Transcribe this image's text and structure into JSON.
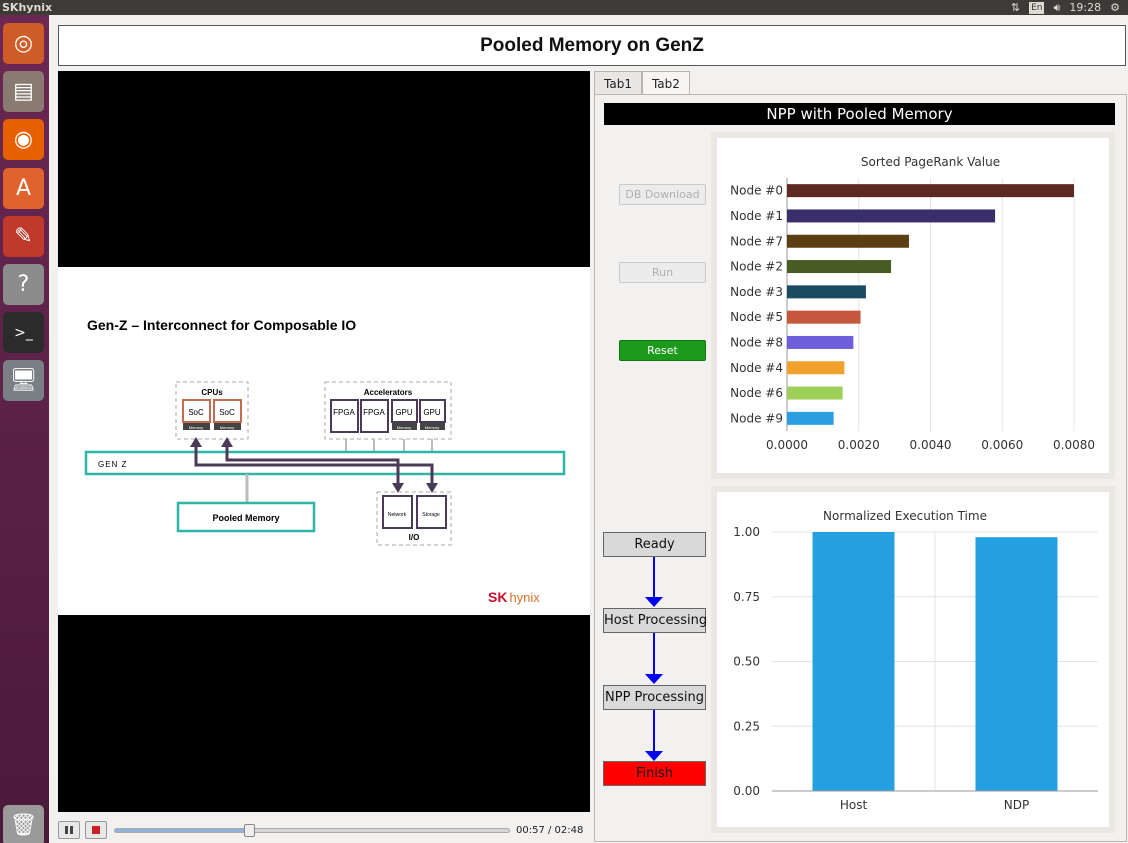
{
  "topbar": {
    "title": "SKhynix",
    "keyboard": "En",
    "time": "19:28",
    "network_icon": "network-arrows-icon",
    "sound_icon": "speaker-icon",
    "power_icon": "power-gear-icon"
  },
  "launcher": {
    "items": [
      {
        "name": "ubuntu-dash-icon",
        "color": "#cf5b27"
      },
      {
        "name": "files-icon",
        "color": "#8a7b72"
      },
      {
        "name": "firefox-icon",
        "color": "#e66000"
      },
      {
        "name": "software-center-icon",
        "color": "#e0622d"
      },
      {
        "name": "system-settings-icon",
        "color": "#c0392b"
      },
      {
        "name": "help-icon",
        "color": "#8c8c8c"
      },
      {
        "name": "terminal-icon",
        "color": "#2b2b2b"
      },
      {
        "name": "remote-desktop-icon",
        "color": "#7a7f86"
      },
      {
        "name": "trash-icon",
        "color": "#9a9a9a"
      }
    ]
  },
  "app": {
    "title": "Pooled Memory on GenZ"
  },
  "video": {
    "slide_title": "Gen-Z – Interconnect for Composable IO",
    "logo_main": "SK",
    "logo_sub": "hynix",
    "diagram": {
      "cpus_label": "CPUs",
      "accelerators_label": "Accelerators",
      "soc": "SoC",
      "memory": "Memory",
      "fpga": "FPGA",
      "gpu": "GPU",
      "genz": "GEN Z",
      "pooled_memory": "Pooled Memory",
      "network": "Network",
      "storage": "Storage",
      "io": "I/O"
    },
    "time": "00:57 / 02:48",
    "progress": 0.339
  },
  "tabs": [
    {
      "label": "Tab1"
    },
    {
      "label": "Tab2"
    }
  ],
  "panel": {
    "title": "NPP with Pooled Memory",
    "buttons": {
      "download": "DB Download",
      "run": "Run",
      "reset": "Reset"
    },
    "flow": {
      "ready": "Ready",
      "host": "Host Processing",
      "npp": "NPP Processing",
      "finish": "Finish"
    }
  },
  "chart_data": [
    {
      "type": "bar",
      "orientation": "horizontal",
      "title": "Sorted PageRank Value",
      "categories": [
        "Node #0",
        "Node #1",
        "Node #7",
        "Node #2",
        "Node #3",
        "Node #5",
        "Node #8",
        "Node #4",
        "Node #6",
        "Node #9"
      ],
      "values": [
        0.008,
        0.0058,
        0.0034,
        0.0029,
        0.0022,
        0.00205,
        0.00185,
        0.0016,
        0.00155,
        0.0013
      ],
      "colors": [
        "#5c2a22",
        "#3a2e6b",
        "#5c3e12",
        "#475c23",
        "#1b4a63",
        "#c4573c",
        "#6f5fdc",
        "#f2a22c",
        "#9ecf58",
        "#2b9ee0"
      ],
      "xlim": [
        0,
        0.008
      ],
      "xticks": [
        "0.0000",
        "0.0020",
        "0.0040",
        "0.0060",
        "0.0080"
      ],
      "grid": true
    },
    {
      "type": "bar",
      "title": "Normalized Execution Time",
      "categories": [
        "Host",
        "NDP"
      ],
      "values": [
        1.0,
        0.98
      ],
      "color": "#24a0e0",
      "ylim": [
        0,
        1.0
      ],
      "yticks": [
        "0.00",
        "0.25",
        "0.50",
        "0.75",
        "1.00"
      ],
      "grid": true
    }
  ]
}
